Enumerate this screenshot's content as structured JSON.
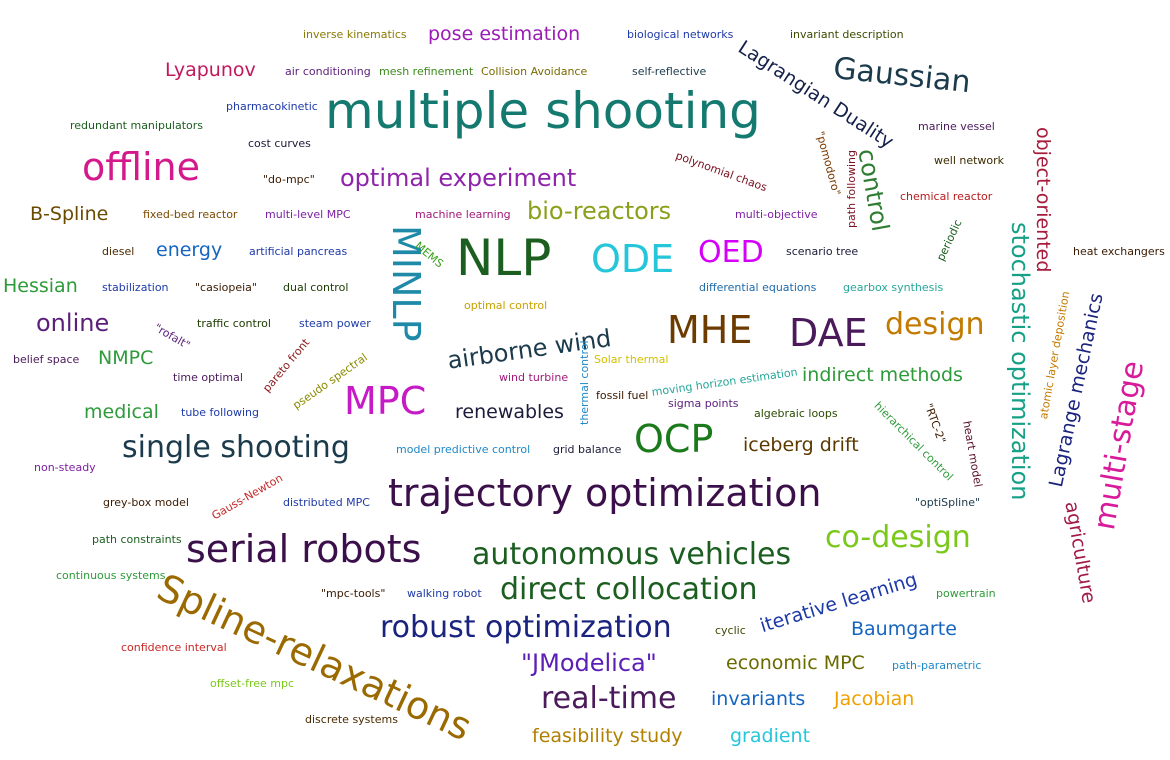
{
  "words": {
    "inverse_kinematics": {
      "text": "inverse kinematics",
      "color": "#8a7a00"
    },
    "pose_estimation": {
      "text": "pose estimation",
      "color": "#9b1bb5"
    },
    "biological_networks": {
      "text": "biological networks",
      "color": "#1e3aa8"
    },
    "invariant_description": {
      "text": "invariant description",
      "color": "#3b4a00"
    },
    "lyapunov": {
      "text": "Lyapunov",
      "color": "#c2185b"
    },
    "air_conditioning": {
      "text": "air conditioning",
      "color": "#5b1f7a"
    },
    "mesh_refinement": {
      "text": "mesh refinement",
      "color": "#3a8a1a"
    },
    "collision_avoidance": {
      "text": "Collision Avoidance",
      "color": "#7a6a00"
    },
    "self_reflective": {
      "text": "self-reflective",
      "color": "#1b3a4b"
    },
    "lagrangian_duality": {
      "text": "Lagrangian Duality",
      "color": "#15204a"
    },
    "gaussian": {
      "text": "Gaussian",
      "color": "#1b3a4b"
    },
    "multiple_shooting": {
      "text": "multiple shooting",
      "color": "#147a70"
    },
    "pharmacokinetic": {
      "text": "pharmacokinetic",
      "color": "#1e3aa8"
    },
    "redundant_manipulators": {
      "text": "redundant manipulators",
      "color": "#1b5e20"
    },
    "cost_curves": {
      "text": "cost curves",
      "color": "#1b1b3a"
    },
    "marine_vessel": {
      "text": "marine vessel",
      "color": "#4a1a5a"
    },
    "object_oriented": {
      "text": "object-oriented",
      "color": "#a61c3c"
    },
    "offline": {
      "text": "offline",
      "color": "#d4198c"
    },
    "polynomial_chaos": {
      "text": "polynomial chaos",
      "color": "#7a1020"
    },
    "pomodoro": {
      "text": "\"pomodoro\"",
      "color": "#7a3a00"
    },
    "path_following": {
      "text": "path following",
      "color": "#7a1020"
    },
    "control": {
      "text": "control",
      "color": "#2e7d32"
    },
    "well_network": {
      "text": "well network",
      "color": "#3b2a00"
    },
    "do_mpc": {
      "text": "\"do-mpc\"",
      "color": "#3a1a00"
    },
    "optimal_experiment": {
      "text": "optimal experiment",
      "color": "#8e24aa"
    },
    "chemical_reactor": {
      "text": "chemical reactor",
      "color": "#b71c1c"
    },
    "b_spline": {
      "text": "B-Spline",
      "color": "#6a4a00"
    },
    "fixed_bed_reactor": {
      "text": "fixed-bed reactor",
      "color": "#7a4a00"
    },
    "multi_level_mpc": {
      "text": "multi-level MPC",
      "color": "#7b1fa2"
    },
    "machine_learning": {
      "text": "machine learning",
      "color": "#a0197a"
    },
    "bio_reactors": {
      "text": "bio-reactors",
      "color": "#8aa01a"
    },
    "multi_objective": {
      "text": "multi-objective",
      "color": "#7b1fa2"
    },
    "stochastic_optimization": {
      "text": "stochastic optimization",
      "color": "#16a085"
    },
    "periodic": {
      "text": "periodic",
      "color": "#1b5e20"
    },
    "diesel": {
      "text": "diesel",
      "color": "#4a2a00"
    },
    "energy": {
      "text": "energy",
      "color": "#1565c0"
    },
    "artificial_pancreas": {
      "text": "artificial pancreas",
      "color": "#1e3aa8"
    },
    "minlp": {
      "text": "MINLP",
      "color": "#1e8aa8"
    },
    "mems": {
      "text": "MEMS",
      "color": "#3aa01a"
    },
    "nlp": {
      "text": "NLP",
      "color": "#1b5e20"
    },
    "ode": {
      "text": "ODE",
      "color": "#26c6da"
    },
    "oed": {
      "text": "OED",
      "color": "#d500f9"
    },
    "scenario_tree": {
      "text": "scenario tree",
      "color": "#1b1b3a"
    },
    "heat_exchangers": {
      "text": "heat exchangers",
      "color": "#3a1a00"
    },
    "hessian": {
      "text": "Hessian",
      "color": "#2e9a3a"
    },
    "stabilization": {
      "text": "stabilization",
      "color": "#1e3aa8"
    },
    "casiopeia": {
      "text": "\"casiopeia\"",
      "color": "#3a1a00"
    },
    "dual_control": {
      "text": "dual control",
      "color": "#1b3a00"
    },
    "differential_equations": {
      "text": "differential equations",
      "color": "#1e6aa8"
    },
    "gearbox_synthesis": {
      "text": "gearbox synthesis",
      "color": "#26a69a"
    },
    "lagrange_mechanics": {
      "text": "Lagrange mechanics",
      "color": "#1a237e"
    },
    "optimal_control": {
      "text": "optimal control",
      "color": "#c9a000"
    },
    "atomic_layer_deposition": {
      "text": "atomic layer deposition",
      "color": "#c27a00"
    },
    "online": {
      "text": "online",
      "color": "#5b1f7a"
    },
    "rofalt": {
      "text": "\"rofalt\"",
      "color": "#5b1f7a"
    },
    "traffic_control": {
      "text": "traffic control",
      "color": "#1b3a00"
    },
    "steam_power": {
      "text": "steam power",
      "color": "#1e3aa8"
    },
    "airborne_wind": {
      "text": "airborne wind",
      "color": "#1b3a4b"
    },
    "mhe": {
      "text": "MHE",
      "color": "#6d3a00"
    },
    "dae": {
      "text": "DAE",
      "color": "#4a1a5a"
    },
    "design": {
      "text": "design",
      "color": "#c27a00"
    },
    "multi_stage": {
      "text": "multi-stage",
      "color": "#d81b9a"
    },
    "nmpc": {
      "text": "NMPC",
      "color": "#2e9a3a"
    },
    "belief_space": {
      "text": "belief space",
      "color": "#4a1a5a"
    },
    "pareto_front": {
      "text": "pareto front",
      "color": "#8a1a1a"
    },
    "pseudo_spectral": {
      "text": "pseudo spectral",
      "color": "#8a8a00"
    },
    "solar_thermal": {
      "text": "Solar thermal",
      "color": "#d4c000"
    },
    "thermal_control": {
      "text": "thermal control",
      "color": "#1e88c8"
    },
    "time_optimal": {
      "text": "time optimal",
      "color": "#4a1a5a"
    },
    "wind_turbine": {
      "text": "wind turbine",
      "color": "#a0197a"
    },
    "fossil_fuel": {
      "text": "fossil fuel",
      "color": "#3a1a00"
    },
    "moving_horizon_estimation": {
      "text": "moving horizon estimation",
      "color": "#26a69a"
    },
    "indirect_methods": {
      "text": "indirect methods",
      "color": "#2e9a3a"
    },
    "medical": {
      "text": "medical",
      "color": "#2e9a3a"
    },
    "tube_following": {
      "text": "tube following",
      "color": "#1e3aa8"
    },
    "mpc": {
      "text": "MPC",
      "color": "#c71ac7"
    },
    "renewables": {
      "text": "renewables",
      "color": "#1b1b3a"
    },
    "sigma_points": {
      "text": "sigma points",
      "color": "#5b1f7a"
    },
    "algebraic_loops": {
      "text": "algebraic loops",
      "color": "#2a4a00"
    },
    "hierarchical_control": {
      "text": "hierarchical control",
      "color": "#2e9a3a"
    },
    "rtc2": {
      "text": "\"RTC-2\"",
      "color": "#3a1a00"
    },
    "heart_model": {
      "text": "heart model",
      "color": "#5b0f2a"
    },
    "agriculture": {
      "text": "agriculture",
      "color": "#a01a4a"
    },
    "single_shooting": {
      "text": "single shooting",
      "color": "#1b3a4b"
    },
    "model_predictive_control": {
      "text": "model predictive control",
      "color": "#1e88c8"
    },
    "grid_balance": {
      "text": "grid balance",
      "color": "#1b1b3a"
    },
    "ocp": {
      "text": "OCP",
      "color": "#1b7a1b"
    },
    "iceberg_drift": {
      "text": "iceberg drift",
      "color": "#5b3a00"
    },
    "non_steady": {
      "text": "non-steady",
      "color": "#7b1fa2"
    },
    "grey_box_model": {
      "text": "grey-box model",
      "color": "#3a1a00"
    },
    "gauss_newton": {
      "text": "Gauss-Newton",
      "color": "#c62828"
    },
    "distributed_mpc": {
      "text": "distributed MPC",
      "color": "#1e3aa8"
    },
    "trajectory_optimization": {
      "text": "trajectory optimization",
      "color": "#3a0f4a"
    },
    "optispline": {
      "text": "\"optiSpline\"",
      "color": "#1b3a4b"
    },
    "path_constraints": {
      "text": "path constraints",
      "color": "#1b5e20"
    },
    "serial_robots": {
      "text": "serial robots",
      "color": "#3a0f4a"
    },
    "autonomous_vehicles": {
      "text": "autonomous vehicles",
      "color": "#1b5e20"
    },
    "co_design": {
      "text": "co-design",
      "color": "#7ac91a"
    },
    "continuous_systems": {
      "text": "continuous systems",
      "color": "#2e9a3a"
    },
    "spline_relaxations": {
      "text": "Spline-relaxations",
      "color": "#9a6a00"
    },
    "mpc_tools": {
      "text": "\"mpc-tools\"",
      "color": "#3a1a00"
    },
    "walking_robot": {
      "text": "walking robot",
      "color": "#1e3aa8"
    },
    "direct_collocation": {
      "text": "direct collocation",
      "color": "#1b5e20"
    },
    "iterative_learning": {
      "text": "iterative learning",
      "color": "#1e3aa8"
    },
    "powertrain": {
      "text": "powertrain",
      "color": "#2e9a3a"
    },
    "robust_optimization": {
      "text": "robust optimization",
      "color": "#1a237e"
    },
    "cyclic": {
      "text": "cyclic",
      "color": "#3a4a00"
    },
    "baumgarte": {
      "text": "Baumgarte",
      "color": "#1565c0"
    },
    "confidence_interval": {
      "text": "confidence interval",
      "color": "#c62828"
    },
    "jmodelica": {
      "text": "\"JModelica\"",
      "color": "#5b1fb5"
    },
    "economic_mpc": {
      "text": "economic MPC",
      "color": "#6a6a00"
    },
    "path_parametric": {
      "text": "path-parametric",
      "color": "#1e88c8"
    },
    "offset_free_mpc": {
      "text": "offset-free mpc",
      "color": "#7ac91a"
    },
    "real_time": {
      "text": "real-time",
      "color": "#4a1a5a"
    },
    "invariants": {
      "text": "invariants",
      "color": "#1565c0"
    },
    "jacobian": {
      "text": "Jacobian",
      "color": "#f0a000"
    },
    "discrete_systems": {
      "text": "discrete systems",
      "color": "#4a2a00"
    },
    "feasibility_study": {
      "text": "feasibility study",
      "color": "#b08000"
    },
    "gradient": {
      "text": "gradient",
      "color": "#26c6da"
    }
  }
}
